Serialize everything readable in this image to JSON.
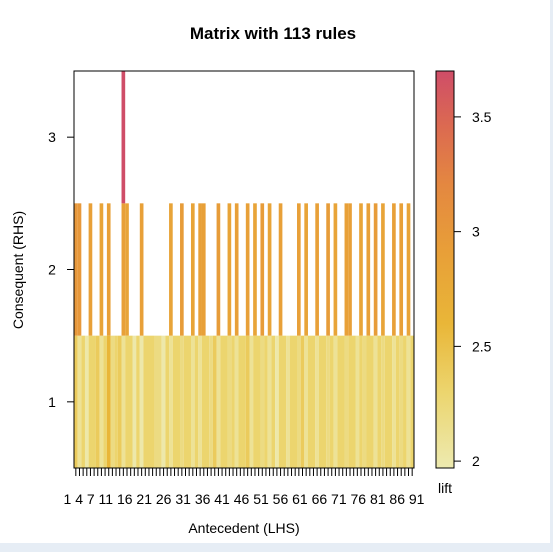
{
  "chart_data": {
    "type": "heatmap",
    "title": "Matrix with 113 rules",
    "xlabel": "Antecedent (LHS)",
    "ylabel": "Consequent (RHS)",
    "x_tick_labels": "1 4 7 11 16 21 26 31 36 41 46 51 56 61 66 71 76 81 86 91",
    "y_ticks": [
      1,
      2,
      3
    ],
    "ylim": [
      0.5,
      3.5
    ],
    "n_antecedents": 93,
    "colorbar": {
      "label": "lift",
      "ticks": [
        2,
        2.5,
        3,
        3.5
      ],
      "range": [
        1.97,
        3.7
      ],
      "stops": [
        {
          "value": 1.97,
          "color": "#edeab0"
        },
        {
          "value": 2.3,
          "color": "#ecd56e"
        },
        {
          "value": 2.6,
          "color": "#e9b638"
        },
        {
          "value": 2.9,
          "color": "#e8a038"
        },
        {
          "value": 3.2,
          "color": "#e48840"
        },
        {
          "value": 3.45,
          "color": "#dc6b50"
        },
        {
          "value": 3.7,
          "color": "#cf4d68"
        }
      ]
    },
    "grid": false,
    "legend": "right",
    "rhs1": [
      {
        "x": [
          1,
          1
        ],
        "lift": 2.4
      },
      {
        "x": [
          2,
          2
        ],
        "lift": 2.1
      },
      {
        "x": [
          3,
          3
        ],
        "lift": 2.3
      },
      {
        "x": [
          4,
          4
        ],
        "lift": 2.0
      },
      {
        "x": [
          5,
          6
        ],
        "lift": 2.3
      },
      {
        "x": [
          7,
          7
        ],
        "lift": 2.4
      },
      {
        "x": [
          8,
          8
        ],
        "lift": 2.1
      },
      {
        "x": [
          9,
          9
        ],
        "lift": 2.3
      },
      {
        "x": [
          10,
          10
        ],
        "lift": 2.6
      },
      {
        "x": [
          11,
          11
        ],
        "lift": 2.2
      },
      {
        "x": [
          12,
          12
        ],
        "lift": 2.3
      },
      {
        "x": [
          13,
          13
        ],
        "lift": 2.4
      },
      {
        "x": [
          14,
          14
        ],
        "lift": 2.1
      },
      {
        "x": [
          15,
          16
        ],
        "lift": 2.3
      },
      {
        "x": [
          17,
          17
        ],
        "lift": 2.0
      },
      {
        "x": [
          18,
          18
        ],
        "lift": 2.3
      },
      {
        "x": [
          19,
          19
        ],
        "lift": 2.0
      },
      {
        "x": [
          20,
          22
        ],
        "lift": 2.3
      },
      {
        "x": [
          23,
          24
        ],
        "lift": 2.2
      },
      {
        "x": [
          25,
          25
        ],
        "lift": 2.0
      },
      {
        "x": [
          26,
          26
        ],
        "lift": 2.3
      },
      {
        "x": [
          27,
          27
        ],
        "lift": 2.1
      },
      {
        "x": [
          28,
          29
        ],
        "lift": 2.3
      },
      {
        "x": [
          30,
          30
        ],
        "lift": 2.2
      },
      {
        "x": [
          31,
          32
        ],
        "lift": 2.3
      },
      {
        "x": [
          33,
          33
        ],
        "lift": 2.1
      },
      {
        "x": [
          34,
          34
        ],
        "lift": 2.3
      },
      {
        "x": [
          35,
          35
        ],
        "lift": 2.1
      },
      {
        "x": [
          36,
          37
        ],
        "lift": 2.3
      },
      {
        "x": [
          38,
          38
        ],
        "lift": 2.2
      },
      {
        "x": [
          39,
          39
        ],
        "lift": 2.4
      },
      {
        "x": [
          40,
          40
        ],
        "lift": 2.1
      },
      {
        "x": [
          41,
          42
        ],
        "lift": 2.3
      },
      {
        "x": [
          43,
          43
        ],
        "lift": 2.2
      },
      {
        "x": [
          44,
          44
        ],
        "lift": 2.3
      },
      {
        "x": [
          45,
          45
        ],
        "lift": 2.1
      },
      {
        "x": [
          46,
          47
        ],
        "lift": 2.3
      },
      {
        "x": [
          48,
          48
        ],
        "lift": 2.4
      },
      {
        "x": [
          49,
          49
        ],
        "lift": 2.1
      },
      {
        "x": [
          50,
          51
        ],
        "lift": 2.3
      },
      {
        "x": [
          52,
          52
        ],
        "lift": 2.2
      },
      {
        "x": [
          53,
          53
        ],
        "lift": 2.3
      },
      {
        "x": [
          54,
          54
        ],
        "lift": 2.1
      },
      {
        "x": [
          55,
          55
        ],
        "lift": 2.3
      },
      {
        "x": [
          56,
          56
        ],
        "lift": 2.0
      },
      {
        "x": [
          57,
          58
        ],
        "lift": 2.3
      },
      {
        "x": [
          59,
          59
        ],
        "lift": 2.1
      },
      {
        "x": [
          60,
          61
        ],
        "lift": 2.3
      },
      {
        "x": [
          62,
          62
        ],
        "lift": 2.2
      },
      {
        "x": [
          63,
          63
        ],
        "lift": 2.4
      },
      {
        "x": [
          64,
          64
        ],
        "lift": 2.1
      },
      {
        "x": [
          65,
          66
        ],
        "lift": 2.3
      },
      {
        "x": [
          67,
          67
        ],
        "lift": 2.1
      },
      {
        "x": [
          68,
          69
        ],
        "lift": 2.3
      },
      {
        "x": [
          70,
          70
        ],
        "lift": 2.2
      },
      {
        "x": [
          71,
          71
        ],
        "lift": 2.3
      },
      {
        "x": [
          72,
          72
        ],
        "lift": 2.1
      },
      {
        "x": [
          73,
          74
        ],
        "lift": 2.3
      },
      {
        "x": [
          75,
          75
        ],
        "lift": 2.2
      },
      {
        "x": [
          76,
          77
        ],
        "lift": 2.3
      },
      {
        "x": [
          78,
          78
        ],
        "lift": 2.1
      },
      {
        "x": [
          79,
          79
        ],
        "lift": 2.3
      },
      {
        "x": [
          80,
          80
        ],
        "lift": 2.2
      },
      {
        "x": [
          81,
          82
        ],
        "lift": 2.3
      },
      {
        "x": [
          83,
          83
        ],
        "lift": 2.1
      },
      {
        "x": [
          84,
          84
        ],
        "lift": 2.3
      },
      {
        "x": [
          85,
          85
        ],
        "lift": 2.2
      },
      {
        "x": [
          86,
          87
        ],
        "lift": 2.3
      },
      {
        "x": [
          88,
          88
        ],
        "lift": 2.1
      },
      {
        "x": [
          89,
          89
        ],
        "lift": 2.3
      },
      {
        "x": [
          90,
          90
        ],
        "lift": 2.2
      },
      {
        "x": [
          91,
          91
        ],
        "lift": 2.3
      },
      {
        "x": [
          92,
          92
        ],
        "lift": 2.1
      },
      {
        "x": [
          93,
          93
        ],
        "lift": 2.3
      }
    ],
    "rhs2": [
      {
        "x": 1,
        "lift": 3.0
      },
      {
        "x": 2,
        "lift": 3.0
      },
      {
        "x": 5,
        "lift": 2.9
      },
      {
        "x": 8,
        "lift": 2.85
      },
      {
        "x": 10,
        "lift": 2.9
      },
      {
        "x": 14,
        "lift": 2.9
      },
      {
        "x": 15,
        "lift": 2.85
      },
      {
        "x": 19,
        "lift": 2.9
      },
      {
        "x": 27,
        "lift": 2.85
      },
      {
        "x": 30,
        "lift": 2.95
      },
      {
        "x": 33,
        "lift": 2.85
      },
      {
        "x": 35,
        "lift": 2.9
      },
      {
        "x": 36,
        "lift": 2.9
      },
      {
        "x": 40,
        "lift": 2.95
      },
      {
        "x": 43,
        "lift": 2.85
      },
      {
        "x": 45,
        "lift": 2.9
      },
      {
        "x": 48,
        "lift": 2.9
      },
      {
        "x": 50,
        "lift": 2.85
      },
      {
        "x": 52,
        "lift": 2.95
      },
      {
        "x": 54,
        "lift": 2.85
      },
      {
        "x": 57,
        "lift": 2.9
      },
      {
        "x": 62,
        "lift": 2.9
      },
      {
        "x": 64,
        "lift": 2.85
      },
      {
        "x": 67,
        "lift": 2.9
      },
      {
        "x": 70,
        "lift": 2.95
      },
      {
        "x": 72,
        "lift": 2.85
      },
      {
        "x": 75,
        "lift": 2.9
      },
      {
        "x": 76,
        "lift": 2.9
      },
      {
        "x": 79,
        "lift": 2.85
      },
      {
        "x": 81,
        "lift": 2.9
      },
      {
        "x": 83,
        "lift": 2.95
      },
      {
        "x": 85,
        "lift": 2.85
      },
      {
        "x": 88,
        "lift": 2.9
      },
      {
        "x": 90,
        "lift": 2.9
      },
      {
        "x": 92,
        "lift": 2.85
      }
    ],
    "rhs3": [
      {
        "x": 14,
        "lift": 3.7
      }
    ]
  }
}
